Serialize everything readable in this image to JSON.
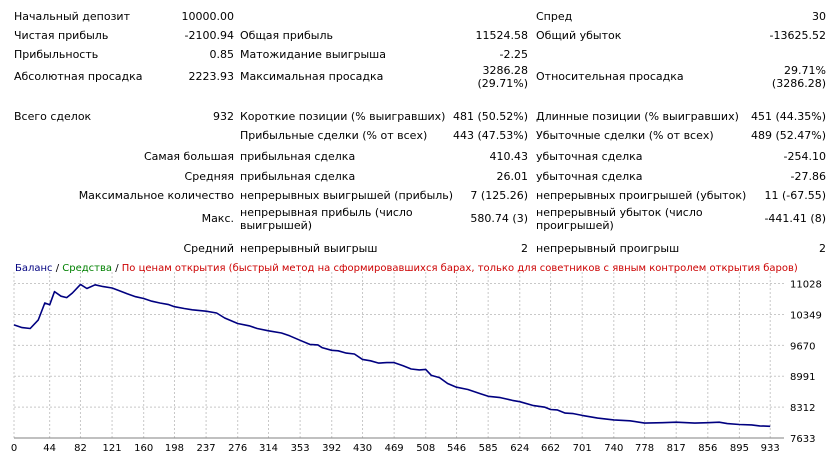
{
  "summary": [
    {
      "label": "Начальный депозит",
      "value": "10000.00",
      "label2": "",
      "value2": "",
      "label3": "Спред",
      "value3": "30"
    },
    {
      "label": "Чистая прибыль",
      "value": "-2100.94",
      "label2": "Общая прибыль",
      "value2": "11524.58",
      "label3": "Общий убыток",
      "value3": "-13625.52"
    },
    {
      "label": "Прибыльность",
      "value": "0.85",
      "label2": "Матожидание выигрыша",
      "value2": "-2.25",
      "label3": "",
      "value3": ""
    },
    {
      "label": "Абсолютная просадка",
      "value": "2223.93",
      "label2": "Максимальная просадка",
      "value2a": "3286.28",
      "value2b": "(29.71%)",
      "label3": "Относительная просадка",
      "value3a": "29.71%",
      "value3b": "(3286.28)"
    },
    {
      "label": "Всего сделок",
      "value": "932",
      "label2": "Короткие позиции (% выигравших)",
      "value2": "481 (50.52%)",
      "label3": "Длинные позиции (% выигравших)",
      "value3": "451 (44.35%)"
    },
    {
      "label": "",
      "value": "",
      "label2": "Прибыльные сделки (% от всех)",
      "value2": "443 (47.53%)",
      "label3": "Убыточные сделки (% от всех)",
      "value3": "489 (52.47%)"
    },
    {
      "label": "Самая большая",
      "value": "",
      "label2": "прибыльная сделка",
      "value2": "410.43",
      "label3": "убыточная сделка",
      "value3": "-254.10"
    },
    {
      "label": "Средняя",
      "value": "",
      "label2": "прибыльная сделка",
      "value2": "26.01",
      "label3": "убыточная сделка",
      "value3": "-27.86"
    },
    {
      "label": "Максимальное количество",
      "value": "",
      "label2": "непрерывных выигрышей (прибыль)",
      "value2": "7 (125.26)",
      "label3": "непрерывных проигрышей (убыток)",
      "value3": "11 (-67.55)"
    },
    {
      "label": "Макс.",
      "value": "",
      "label2a": "непрерывная прибыль (число",
      "label2b": "выигрышей)",
      "value2": "580.74 (3)",
      "label3a": "непрерывный убыток (число",
      "label3b": "проигрышей)",
      "value3": "-441.41 (8)"
    },
    {
      "label": "Средний",
      "value": "",
      "label2": "непрерывный выигрыш",
      "value2": "2",
      "label3": "непрерывный проигрыш",
      "value3": "2"
    }
  ],
  "chart": {
    "legend": [
      {
        "text": "Баланс",
        "color": "#000080"
      },
      {
        "text": " / ",
        "color": "#000000"
      },
      {
        "text": "Средства",
        "color": "#008000"
      },
      {
        "text": " / ",
        "color": "#000000"
      },
      {
        "text": "По ценам открытия (быстрый метод на сформировавшихся барах, только для советников с явным контролем открытия баров)",
        "color": "#cc0000"
      }
    ],
    "line_color": "#000080",
    "grid_color": "#c8c8c8"
  },
  "chart_data": {
    "type": "line",
    "title": "",
    "xlabel": "",
    "ylabel": "",
    "x_ticks": [
      0,
      44,
      82,
      121,
      160,
      198,
      237,
      276,
      314,
      353,
      392,
      430,
      469,
      508,
      546,
      585,
      624,
      662,
      701,
      740,
      778,
      817,
      856,
      895,
      933
    ],
    "y_ticks": [
      11028,
      10349,
      9670,
      8991,
      8312,
      7633
    ],
    "xlim": [
      0,
      950
    ],
    "ylim": [
      7633,
      11150
    ],
    "series": [
      {
        "name": "",
        "x": [
          0,
          10,
          20,
          30,
          38,
          44,
          50,
          58,
          65,
          72,
          82,
          90,
          100,
          110,
          121,
          130,
          140,
          150,
          160,
          170,
          180,
          190,
          198,
          210,
          220,
          237,
          250,
          260,
          276,
          290,
          300,
          314,
          330,
          340,
          353,
          365,
          375,
          380,
          392,
          400,
          410,
          420,
          430,
          440,
          450,
          460,
          469,
          480,
          490,
          500,
          508,
          515,
          525,
          535,
          546,
          560,
          575,
          585,
          600,
          615,
          624,
          640,
          655,
          662,
          670,
          680,
          690,
          701,
          720,
          740,
          760,
          778,
          800,
          817,
          840,
          856,
          870,
          880,
          895,
          910,
          920,
          933
        ],
        "y": [
          10120,
          10060,
          10040,
          10230,
          10600,
          10560,
          10850,
          10750,
          10720,
          10820,
          11010,
          10920,
          11000,
          10960,
          10930,
          10870,
          10800,
          10740,
          10700,
          10640,
          10600,
          10570,
          10520,
          10480,
          10450,
          10420,
          10380,
          10270,
          10150,
          10100,
          10040,
          9990,
          9940,
          9880,
          9780,
          9690,
          9680,
          9620,
          9560,
          9550,
          9500,
          9480,
          9360,
          9330,
          9280,
          9290,
          9290,
          9220,
          9150,
          9130,
          9140,
          9010,
          8960,
          8830,
          8750,
          8700,
          8610,
          8550,
          8520,
          8460,
          8430,
          8350,
          8310,
          8260,
          8250,
          8180,
          8170,
          8130,
          8070,
          8030,
          8010,
          7960,
          7970,
          7980,
          7960,
          7970,
          7980,
          7950,
          7930,
          7920,
          7900,
          7890
        ]
      }
    ]
  }
}
